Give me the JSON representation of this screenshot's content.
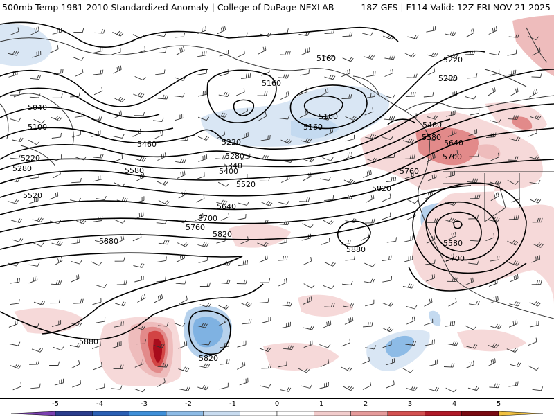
{
  "header": {
    "title_left": "500mb Temp 1981-2010 Standardized Anomaly | College of DuPage NEXLAB",
    "title_right": "18Z GFS | F114 Valid: 12Z FRI NOV 21 2025"
  },
  "colors": {
    "warm_1": "#f6d9d9",
    "warm_2": "#eebcbc",
    "warm_3": "#e28a8a",
    "warm_4": "#d24444",
    "warm_5": "#a80c1c",
    "cold_1": "#d9e6f4",
    "cold_2": "#b6d1ec",
    "cold_3": "#7fb2e2",
    "cold_4": "#3a86d4",
    "coast": "#333333",
    "contour": "#000000"
  },
  "map": {
    "contour_labels": [
      {
        "id": "c5160a",
        "text": "5160"
      },
      {
        "id": "c5160b",
        "text": "5160"
      },
      {
        "id": "c5160c",
        "text": "5160"
      },
      {
        "id": "c5100a",
        "text": "5100"
      },
      {
        "id": "c5100b",
        "text": "5100"
      },
      {
        "id": "c5040",
        "text": "5040"
      },
      {
        "id": "c5220a",
        "text": "5220"
      },
      {
        "id": "c5220b",
        "text": "5220"
      },
      {
        "id": "c5220c",
        "text": "5220"
      },
      {
        "id": "c5280a",
        "text": "5280"
      },
      {
        "id": "c5280b",
        "text": "5280"
      },
      {
        "id": "c5280c",
        "text": "5280"
      },
      {
        "id": "c5340",
        "text": "5340"
      },
      {
        "id": "c5400",
        "text": "5400"
      },
      {
        "id": "c5460a",
        "text": "5460"
      },
      {
        "id": "c5460b",
        "text": "5460"
      },
      {
        "id": "c5520a",
        "text": "5520"
      },
      {
        "id": "c5520b",
        "text": "5520"
      },
      {
        "id": "c5580a",
        "text": "5580"
      },
      {
        "id": "c5580b",
        "text": "5580"
      },
      {
        "id": "c5580c",
        "text": "5580"
      },
      {
        "id": "c5640a",
        "text": "5640"
      },
      {
        "id": "c5640b",
        "text": "5640"
      },
      {
        "id": "c5700a",
        "text": "5700"
      },
      {
        "id": "c5700b",
        "text": "5700"
      },
      {
        "id": "c5700c",
        "text": "5700"
      },
      {
        "id": "c5760a",
        "text": "5760"
      },
      {
        "id": "c5760b",
        "text": "5760"
      },
      {
        "id": "c5820a",
        "text": "5820"
      },
      {
        "id": "c5820b",
        "text": "5820"
      },
      {
        "id": "c5820c",
        "text": "5820"
      },
      {
        "id": "c5880a",
        "text": "5880"
      },
      {
        "id": "c5880b",
        "text": "5880"
      },
      {
        "id": "c5880c",
        "text": "5880"
      }
    ]
  },
  "colorbar": {
    "ticks": [
      "-5",
      "-4",
      "-3",
      "-2",
      "-1",
      "0",
      "1",
      "2",
      "3",
      "4",
      "5"
    ],
    "segment_colors": [
      "#7a3fb0",
      "#2a3c8c",
      "#2a5fb4",
      "#3e8fd8",
      "#8dbbe6",
      "#c9dcf0",
      "#ffffff",
      "#ffffff",
      "#f2cccc",
      "#e59a9a",
      "#d35050",
      "#b01a28",
      "#7a0a12",
      "#f0c040"
    ]
  }
}
